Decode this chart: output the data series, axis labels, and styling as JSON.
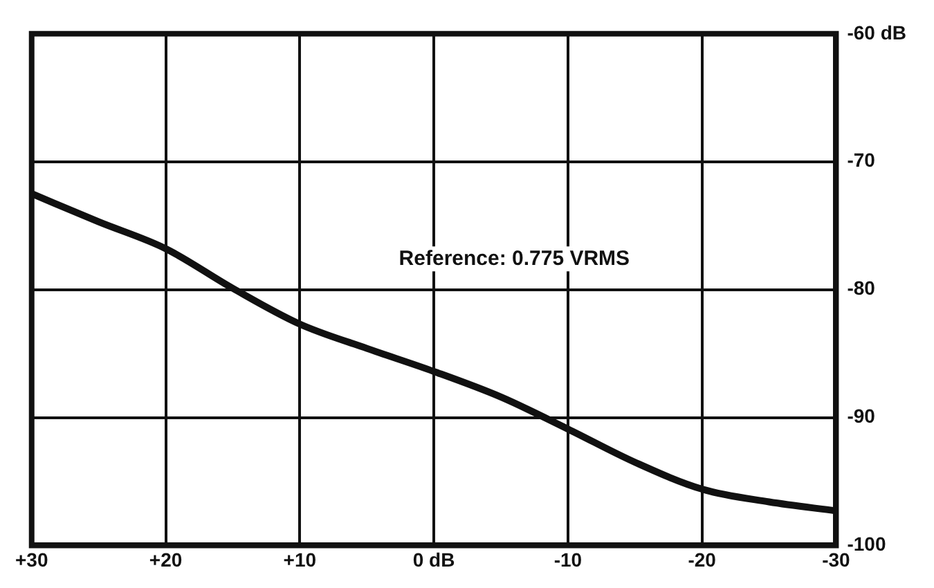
{
  "chart_data": {
    "type": "line",
    "annotations": [
      "Reference: 0.775 VRMS"
    ],
    "x": [
      30,
      25,
      20,
      15,
      10,
      5,
      0,
      -5,
      -10,
      -15,
      -20,
      -25,
      -30
    ],
    "series": [
      {
        "color": "#111111",
        "values": [
          -72.5,
          -74.7,
          -76.8,
          -79.9,
          -82.7,
          -84.6,
          -86.4,
          -88.4,
          -90.9,
          -93.5,
          -95.6,
          -96.6,
          -97.3
        ]
      }
    ],
    "xlim": [
      30,
      -30
    ],
    "ylim": [
      -100,
      -60
    ],
    "xticks": [
      {
        "value": 30,
        "label": "+30"
      },
      {
        "value": 20,
        "label": "+20"
      },
      {
        "value": 10,
        "label": "+10"
      },
      {
        "value": 0,
        "label": "0 dB"
      },
      -10,
      -20,
      -30
    ],
    "yticks": [
      -100,
      -90,
      -80,
      -70,
      {
        "value": -60,
        "label": "-60 dB"
      }
    ],
    "grid": true,
    "marker": "none",
    "line_style": "solid"
  }
}
